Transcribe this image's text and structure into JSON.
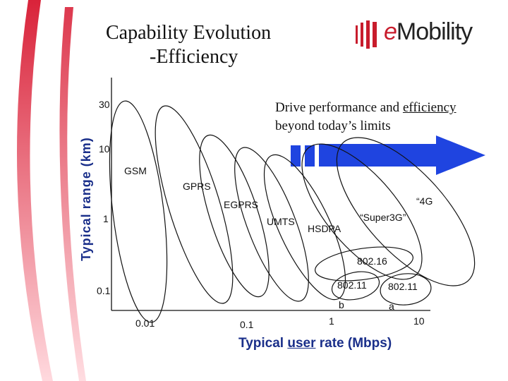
{
  "title": {
    "line1": "Capability Evolution",
    "line2": "-Efficiency"
  },
  "logo": {
    "prefix": "e",
    "name": "Mobility"
  },
  "callout": {
    "text": "Drive performance and",
    "emphasis": "efficiency",
    "line2": "beyond today’s limits"
  },
  "axes": {
    "y_label": "Typical range (km)",
    "x_label_pre": "Typical ",
    "x_label_underlined": "user",
    "x_label_post": " rate (Mbps)",
    "y_ticks": [
      "30",
      "10",
      "1",
      "0.1"
    ],
    "x_ticks": [
      "0.01",
      "0.1",
      "1",
      "10"
    ]
  },
  "technologies": {
    "gsm": "GSM",
    "gprs": "GPRS",
    "egprs": "EGPRS",
    "umts": "UMTS",
    "hsdpa": "HSDPA",
    "super3g": "“Super3G”",
    "fourg": "“4G",
    "wimax": "802.16",
    "wifi_b": "802.11",
    "wifi_b_suffix": "b",
    "wifi_a": "802.11",
    "wifi_a_suffix": "a"
  },
  "colors": {
    "accent_red": "#c81c2c",
    "arrow_blue": "#1f44e0",
    "axis_label_blue": "#1a2f8a"
  }
}
